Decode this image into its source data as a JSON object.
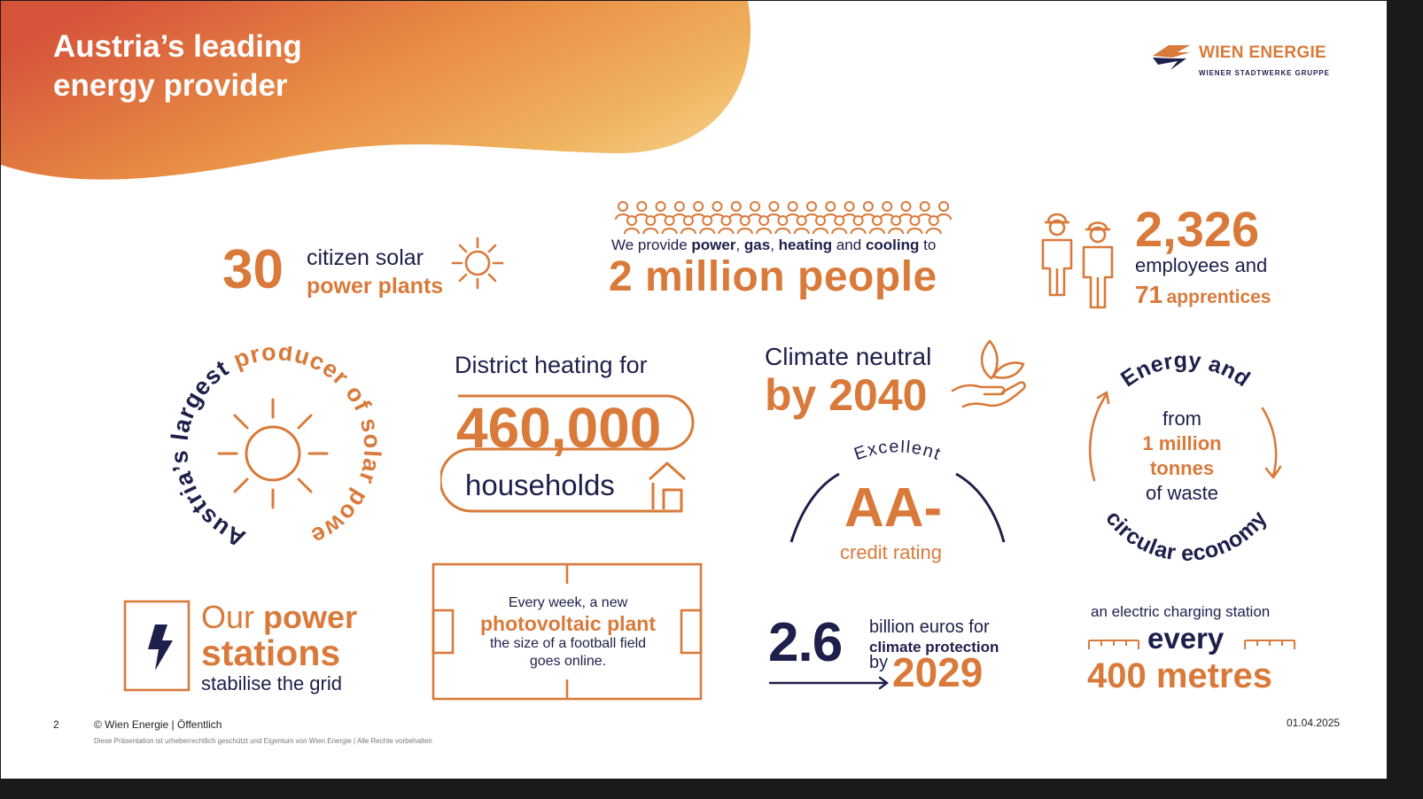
{
  "colors": {
    "orange": "#d97a3a",
    "navy": "#1e1f4b",
    "frame": "#1a1a1a"
  },
  "header": {
    "title_line1": "Austria’s leading",
    "title_line2": "energy provider"
  },
  "logo": {
    "brand": "WIEN ENERGIE",
    "subtitle": "WIENER STADTWERKE GRUPPE",
    "icon": "wien-energie-logo-icon"
  },
  "solar_plants": {
    "number": "30",
    "line1": "citizen solar",
    "line2": "power plants",
    "icon": "sun-icon"
  },
  "people": {
    "icon": "crowd-icon",
    "intro_1": "We provide ",
    "intro_b1": "power",
    "intro_2": ", ",
    "intro_b2": "gas",
    "intro_3": ", ",
    "intro_b3": "heating",
    "intro_4": " and ",
    "intro_b4": "cooling",
    "intro_5": " to",
    "headline": "2 million people"
  },
  "employees": {
    "icon": "workers-icon",
    "number": "2,326",
    "line1": "employees and",
    "apprentices_number": "71",
    "apprentices_label": "apprentices"
  },
  "solar_producer": {
    "arc_text": "Austria’s largest producer of solar power",
    "icon": "sun-icon"
  },
  "district_heating": {
    "title": "District heating for",
    "number": "460,000",
    "label": "households",
    "icon": "house-icon"
  },
  "climate": {
    "line1": "Climate neutral",
    "line2": "by 2040",
    "icon": "hand-with-leaf-icon"
  },
  "rating": {
    "arc_text": "Excellent",
    "grade": "AA-",
    "label": "credit rating"
  },
  "circular": {
    "top_arc": "Energy and",
    "bottom_arc": "circular economy",
    "line1": "from",
    "line2": "1 million",
    "line3": "tonnes",
    "line4": "of waste"
  },
  "power_stations": {
    "icon": "lightning-icon",
    "word1": "Our",
    "word2": "power",
    "word3": "stations",
    "line3": "stabilise the grid"
  },
  "photovoltaic": {
    "line1": "Every week, a new",
    "line2": "photovoltaic plant",
    "line3": "the size of a football field",
    "line4": "goes online.",
    "icon": "football-field-icon"
  },
  "climate_protection": {
    "number": "2.6",
    "line1": "billion euros for",
    "line2": "climate protection",
    "by": "by",
    "year": "2029",
    "icon": "arrow-right-icon"
  },
  "charging": {
    "line1": "an electric charging station",
    "every": "every",
    "distance": "400 metres",
    "icon": "ruler-icon"
  },
  "footer": {
    "page": "2",
    "copyright": "© Wien Energie | Öffentlich",
    "legal": "Diese Präsentation ist urheberrechtlich geschützt und Eigentum von Wien Energie | Alle Rechte vorbehalten",
    "date": "01.04.2025"
  }
}
